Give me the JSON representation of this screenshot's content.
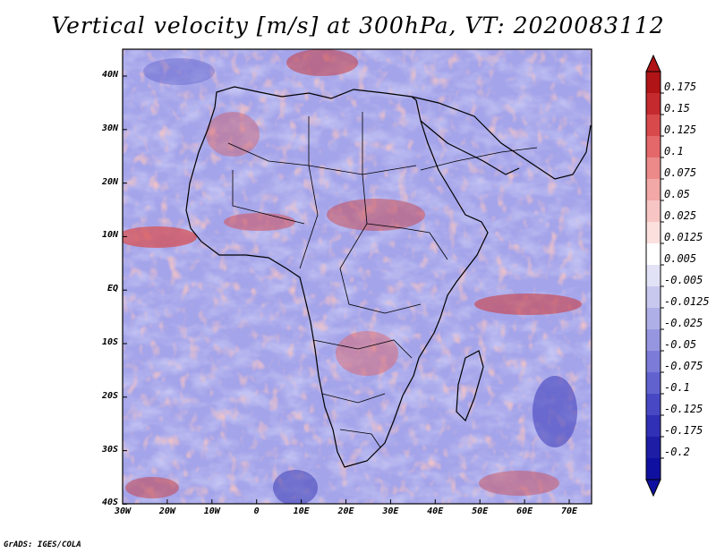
{
  "title": "Vertical velocity [m/s] at 300hPa, VT: 2020083112",
  "footer": "GrADS: IGES/COLA",
  "map": {
    "lat_range": [
      -40,
      45
    ],
    "lon_range": [
      -30,
      75
    ],
    "lat_ticks": [
      "40N",
      "30N",
      "20N",
      "10N",
      "EQ",
      "10S",
      "20S",
      "30S",
      "40S"
    ],
    "lon_ticks": [
      "30W",
      "20W",
      "10W",
      "0",
      "10E",
      "20E",
      "30E",
      "40E",
      "50E",
      "60E",
      "70E"
    ]
  },
  "colorbar": {
    "labels": [
      "0.175",
      "0.15",
      "0.125",
      "0.1",
      "0.075",
      "0.05",
      "0.025",
      "0.0125",
      "0.005",
      "-0.005",
      "-0.0125",
      "-0.025",
      "-0.05",
      "-0.075",
      "-0.1",
      "-0.125",
      "-0.175",
      "-0.2"
    ],
    "colors": [
      "#b01416",
      "#c42a2e",
      "#d8494c",
      "#e4676a",
      "#ec8a8a",
      "#f2a8a6",
      "#f7c6c4",
      "#fbe0de",
      "#ffffff",
      "#e2e2f6",
      "#c8c8ef",
      "#afafe8",
      "#9696e0",
      "#7c7cd8",
      "#6262cf",
      "#4848c4",
      "#3030b6",
      "#1d1da6",
      "#1010a0"
    ]
  }
}
